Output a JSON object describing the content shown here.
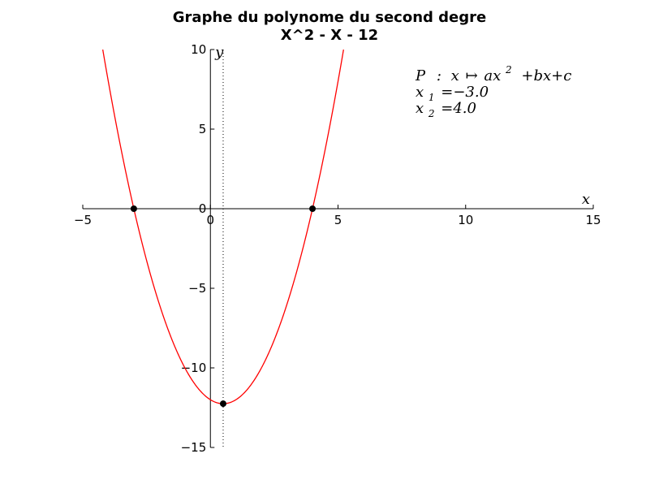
{
  "chart_data": {
    "type": "line",
    "title_line1": "Graphe du polynome du second degre",
    "title_line2": "X^2 - X - 12",
    "xlabel": "x",
    "ylabel": "y",
    "xlim": [
      -5,
      15
    ],
    "ylim": [
      -15,
      10
    ],
    "x_ticks": [
      -5,
      0,
      5,
      10,
      15
    ],
    "y_ticks": [
      -15,
      -10,
      -5,
      0,
      5,
      10
    ],
    "x_tick_labels": [
      "−5",
      "0",
      "5",
      "10",
      "15"
    ],
    "y_tick_labels": [
      "−15",
      "−10",
      "−5",
      "0",
      "5",
      "10"
    ],
    "coefficients": {
      "a": 1,
      "b": -1,
      "c": -12
    },
    "curve_color": "#ff0000",
    "points": [
      {
        "name": "root-1",
        "x": -3.0,
        "y": 0
      },
      {
        "name": "root-2",
        "x": 4.0,
        "y": 0
      },
      {
        "name": "vertex",
        "x": 0.5,
        "y": -12.25
      }
    ],
    "axis_of_symmetry_x": 0.5,
    "annotation": {
      "line1": {
        "P": "P",
        "colon": ":",
        "x": "x",
        "maps": "↦",
        "ax": "ax",
        "exp": "2",
        "rest": "+bx+c"
      },
      "line2": {
        "var": "x",
        "sub": "1",
        "eq": "=−3.0"
      },
      "line3": {
        "var": "x",
        "sub": "2",
        "eq": "=4.0"
      }
    },
    "grid": false,
    "legend": "none"
  }
}
